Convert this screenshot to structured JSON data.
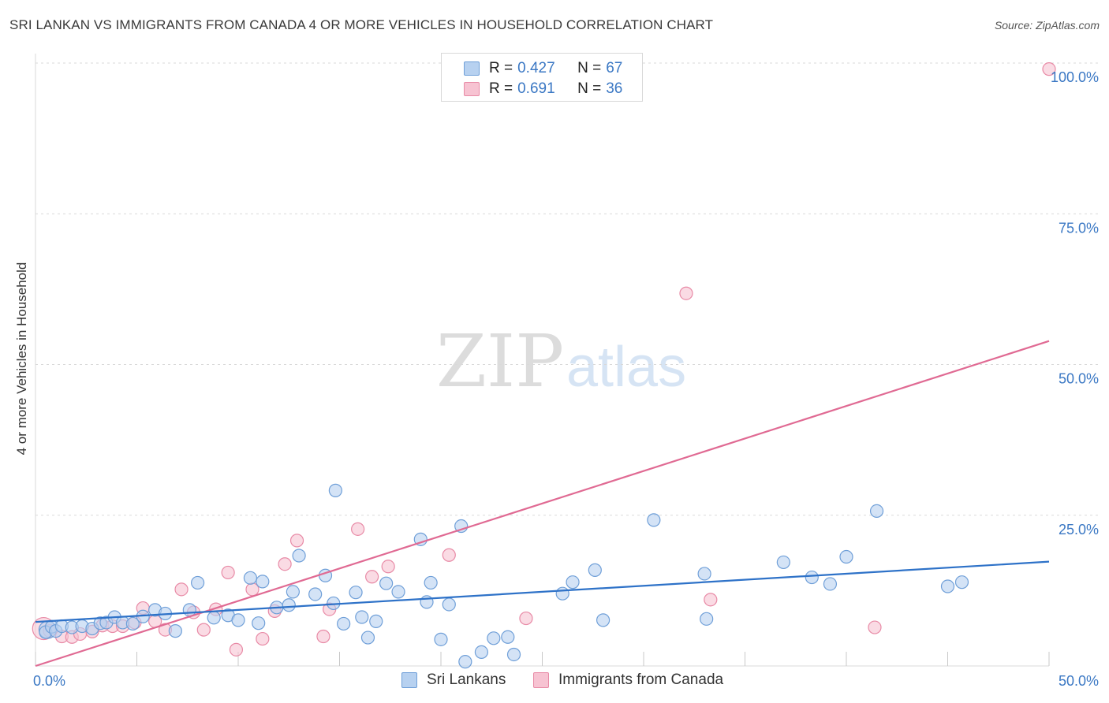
{
  "title": "SRI LANKAN VS IMMIGRANTS FROM CANADA 4 OR MORE VEHICLES IN HOUSEHOLD CORRELATION CHART",
  "source": "Source: ZipAtlas.com",
  "watermark": {
    "zip": "ZIP",
    "atlas": "atlas"
  },
  "legend": {
    "rows": [
      {
        "r_label": "R = ",
        "r_value": "0.427",
        "n_label": "N = ",
        "n_value": "67"
      },
      {
        "r_label": "R = ",
        "r_value": "0.691",
        "n_label": "N = ",
        "n_value": "36"
      }
    ]
  },
  "bottom_legend": {
    "series1": "Sri Lankans",
    "series2": "Immigrants from Canada"
  },
  "colors": {
    "blue_fill": "#b7d1f0",
    "blue_stroke": "#6f9fd8",
    "blue_line": "#2e72c8",
    "pink_fill": "#f7c3d2",
    "pink_stroke": "#e88aa6",
    "pink_line": "#e06a93",
    "tick_label": "#3b78c4",
    "grid": "#d9d9d9"
  },
  "chart_data": {
    "type": "scatter",
    "title": "SRI LANKAN VS IMMIGRANTS FROM CANADA 4 OR MORE VEHICLES IN HOUSEHOLD CORRELATION CHART",
    "xlabel": "",
    "ylabel": "4 or more Vehicles in Household",
    "xlim": [
      0,
      50
    ],
    "ylim": [
      0,
      100
    ],
    "x_tick_labels": [
      "0.0%",
      "50.0%"
    ],
    "y_ticks": [
      25,
      50,
      75,
      100
    ],
    "y_tick_labels": [
      "25.0%",
      "50.0%",
      "75.0%",
      "100.0%"
    ],
    "grid": true,
    "series": [
      {
        "name": "Sri Lankans",
        "color": "#6f9fd8",
        "trend": {
          "x": [
            0,
            50
          ],
          "y": [
            7.3,
            17.3
          ]
        },
        "points": [
          [
            0.5,
            5.6
          ],
          [
            0.8,
            6.5
          ],
          [
            1.0,
            5.8
          ],
          [
            1.3,
            6.6
          ],
          [
            1.8,
            6.4
          ],
          [
            2.3,
            6.6
          ],
          [
            2.8,
            6.2
          ],
          [
            3.2,
            7.1
          ],
          [
            3.5,
            7.2
          ],
          [
            3.9,
            8.1
          ],
          [
            4.3,
            7.2
          ],
          [
            4.8,
            7.0
          ],
          [
            5.3,
            8.2
          ],
          [
            5.9,
            9.3
          ],
          [
            6.4,
            8.7
          ],
          [
            6.9,
            5.8
          ],
          [
            7.6,
            9.3
          ],
          [
            8.0,
            13.8
          ],
          [
            8.8,
            8.0
          ],
          [
            9.5,
            8.4
          ],
          [
            10.0,
            7.6
          ],
          [
            10.6,
            14.6
          ],
          [
            11.0,
            7.1
          ],
          [
            11.2,
            14.0
          ],
          [
            11.9,
            9.7
          ],
          [
            12.5,
            10.1
          ],
          [
            12.7,
            12.3
          ],
          [
            13.0,
            18.3
          ],
          [
            13.8,
            11.9
          ],
          [
            14.3,
            15.0
          ],
          [
            14.7,
            10.4
          ],
          [
            14.8,
            29.1
          ],
          [
            15.2,
            7.0
          ],
          [
            15.8,
            12.2
          ],
          [
            16.1,
            8.1
          ],
          [
            16.4,
            4.7
          ],
          [
            16.8,
            7.4
          ],
          [
            17.3,
            13.7
          ],
          [
            17.9,
            12.3
          ],
          [
            19.0,
            21.0
          ],
          [
            19.3,
            10.6
          ],
          [
            19.5,
            13.8
          ],
          [
            20.0,
            4.4
          ],
          [
            20.4,
            10.2
          ],
          [
            21.0,
            23.2
          ],
          [
            21.2,
            0.7
          ],
          [
            22.0,
            2.3
          ],
          [
            22.6,
            4.6
          ],
          [
            23.3,
            4.8
          ],
          [
            23.6,
            1.9
          ],
          [
            26.0,
            12.0
          ],
          [
            26.5,
            13.9
          ],
          [
            27.6,
            15.9
          ],
          [
            28.0,
            7.6
          ],
          [
            30.5,
            24.2
          ],
          [
            33.0,
            15.3
          ],
          [
            33.1,
            7.8
          ],
          [
            36.9,
            17.2
          ],
          [
            38.3,
            14.7
          ],
          [
            39.2,
            13.6
          ],
          [
            40.0,
            18.1
          ],
          [
            41.5,
            25.7
          ],
          [
            45.0,
            13.2
          ],
          [
            45.7,
            13.9
          ]
        ]
      },
      {
        "name": "Immigrants from Canada",
        "color": "#e88aa6",
        "trend": {
          "x": [
            0,
            50
          ],
          "y": [
            0.0,
            53.9
          ]
        },
        "points": [
          [
            0.7,
            5.8
          ],
          [
            1.3,
            4.9
          ],
          [
            1.8,
            4.8
          ],
          [
            2.2,
            5.3
          ],
          [
            2.8,
            5.7
          ],
          [
            3.3,
            6.7
          ],
          [
            3.8,
            6.6
          ],
          [
            4.3,
            6.6
          ],
          [
            4.9,
            7.2
          ],
          [
            5.3,
            9.6
          ],
          [
            5.9,
            7.4
          ],
          [
            6.4,
            6.0
          ],
          [
            7.2,
            12.7
          ],
          [
            7.8,
            8.9
          ],
          [
            8.3,
            6.0
          ],
          [
            8.9,
            9.4
          ],
          [
            9.5,
            15.5
          ],
          [
            9.9,
            2.7
          ],
          [
            10.7,
            12.7
          ],
          [
            11.2,
            4.5
          ],
          [
            11.8,
            9.1
          ],
          [
            12.3,
            16.9
          ],
          [
            12.9,
            20.8
          ],
          [
            14.2,
            4.9
          ],
          [
            14.5,
            9.4
          ],
          [
            15.9,
            22.7
          ],
          [
            16.6,
            14.8
          ],
          [
            17.4,
            16.5
          ],
          [
            20.4,
            18.4
          ],
          [
            24.2,
            7.9
          ],
          [
            32.1,
            61.8
          ],
          [
            33.3,
            11.0
          ],
          [
            41.4,
            6.4
          ],
          [
            50.0,
            99.0
          ]
        ]
      }
    ]
  }
}
